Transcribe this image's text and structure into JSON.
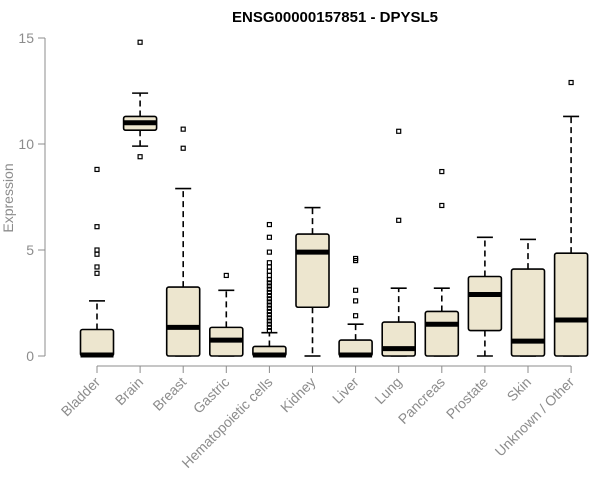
{
  "chart_data": {
    "type": "box",
    "title": "ENSG00000157851 - DPYSL5",
    "xlabel": "",
    "ylabel": "Expression",
    "ylim": [
      0,
      15
    ],
    "yticks": [
      0,
      5,
      10,
      15
    ],
    "grid": false,
    "legend": "none",
    "colors": {
      "box_fill": "#ede6cf",
      "box_stroke": "#000000",
      "axis": "#8c8c8c",
      "title": "#000000"
    },
    "categories": [
      "Bladder",
      "Brain",
      "Breast",
      "Gastric",
      "Hematopoietic cells",
      "Kidney",
      "Liver",
      "Lung",
      "Pancreas",
      "Prostate",
      "Skin",
      "Unknown / Other"
    ],
    "boxes": [
      {
        "category": "Bladder",
        "min": 0,
        "q1": 0,
        "median": 0.05,
        "q3": 1.25,
        "max": 2.6,
        "outliers": [
          3.9,
          4.2,
          4.8,
          5.0,
          6.1,
          8.8
        ]
      },
      {
        "category": "Brain",
        "min": 9.9,
        "q1": 10.65,
        "median": 11.0,
        "q3": 11.3,
        "max": 12.4,
        "outliers": [
          9.4,
          14.8
        ]
      },
      {
        "category": "Breast",
        "min": 0,
        "q1": 0,
        "median": 1.35,
        "q3": 3.25,
        "max": 7.9,
        "outliers": [
          9.8,
          10.7
        ]
      },
      {
        "category": "Gastric",
        "min": 0,
        "q1": 0,
        "median": 0.75,
        "q3": 1.35,
        "max": 3.1,
        "outliers": [
          3.8
        ]
      },
      {
        "category": "Hematopoietic cells",
        "min": 0,
        "q1": 0,
        "median": 0.05,
        "q3": 0.45,
        "max": 1.1,
        "outliers": [
          1.2,
          1.35,
          1.5,
          1.65,
          1.8,
          1.95,
          2.1,
          2.25,
          2.4,
          2.55,
          2.7,
          2.85,
          3.0,
          3.15,
          3.3,
          3.45,
          3.6,
          3.8,
          4.0,
          4.2,
          4.4,
          4.9,
          5.6,
          6.2
        ]
      },
      {
        "category": "Kidney",
        "min": 0,
        "q1": 2.3,
        "median": 4.9,
        "q3": 5.75,
        "max": 7.0,
        "outliers": []
      },
      {
        "category": "Liver",
        "min": 0,
        "q1": 0,
        "median": 0.05,
        "q3": 0.75,
        "max": 1.5,
        "outliers": [
          1.9,
          2.6,
          3.1,
          4.5,
          4.6
        ]
      },
      {
        "category": "Lung",
        "min": 0,
        "q1": 0,
        "median": 0.35,
        "q3": 1.6,
        "max": 3.2,
        "outliers": [
          6.4,
          10.6
        ]
      },
      {
        "category": "Pancreas",
        "min": 0,
        "q1": 0,
        "median": 1.5,
        "q3": 2.1,
        "max": 3.2,
        "outliers": [
          7.1,
          8.7
        ]
      },
      {
        "category": "Prostate",
        "min": 0,
        "q1": 1.2,
        "median": 2.9,
        "q3": 3.75,
        "max": 5.6,
        "outliers": []
      },
      {
        "category": "Skin",
        "min": 0,
        "q1": 0,
        "median": 0.7,
        "q3": 4.1,
        "max": 5.5,
        "outliers": []
      },
      {
        "category": "Unknown / Other",
        "min": 0,
        "q1": 0,
        "median": 1.7,
        "q3": 4.85,
        "max": 11.3,
        "outliers": [
          12.9
        ]
      }
    ]
  }
}
